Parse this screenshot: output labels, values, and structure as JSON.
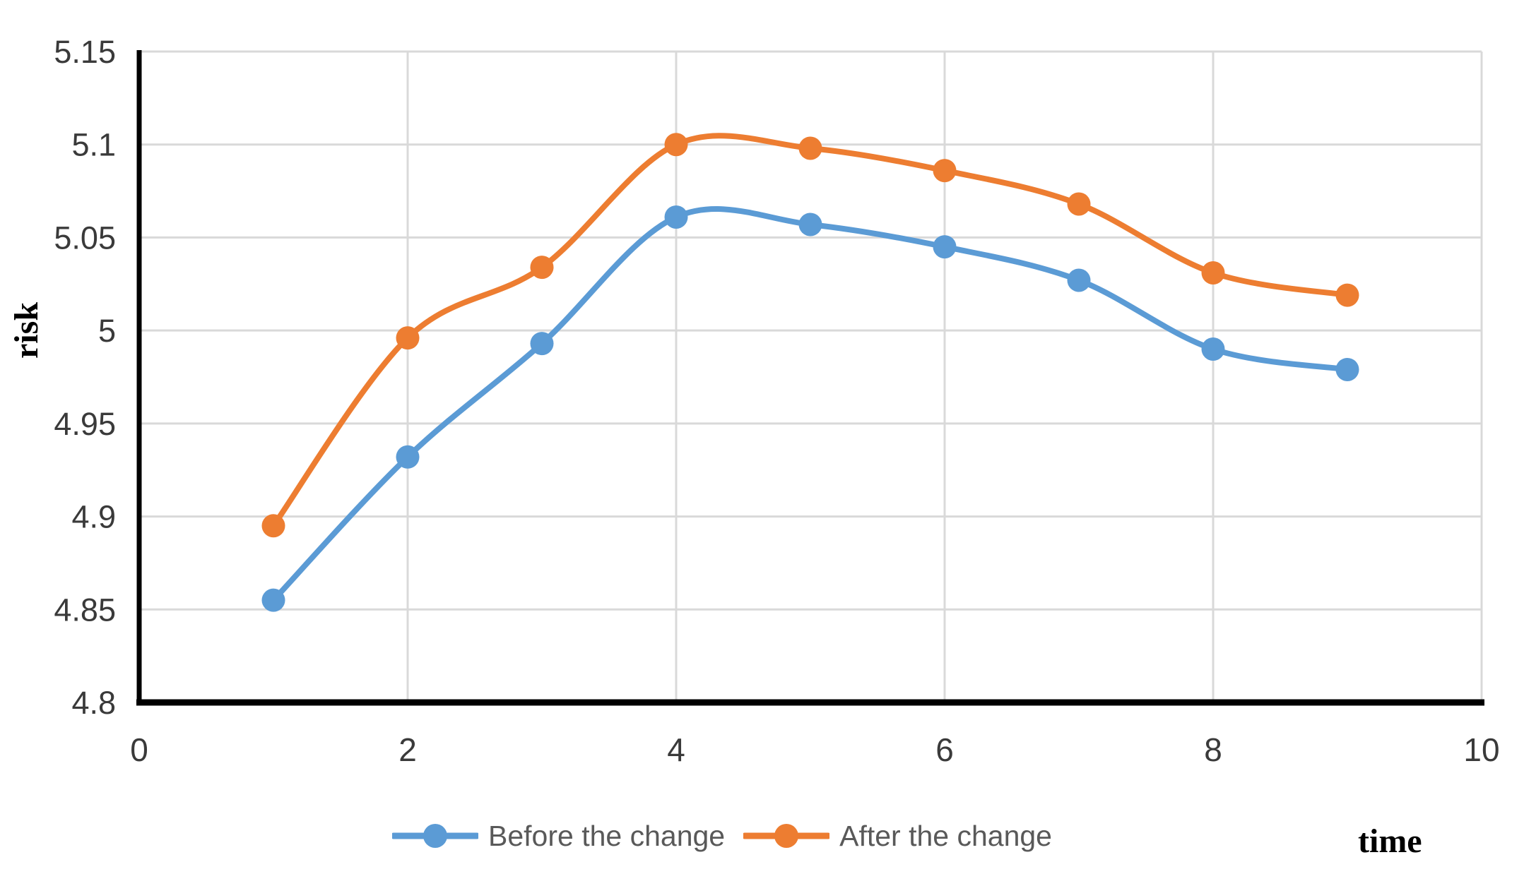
{
  "chart_data": {
    "type": "line",
    "title": "",
    "xlabel": "time",
    "ylabel": "risk",
    "x": [
      1,
      2,
      3,
      4,
      5,
      6,
      7,
      8,
      9
    ],
    "series": [
      {
        "name": "Before the change",
        "color": "#5B9BD5",
        "values": [
          4.855,
          4.932,
          4.993,
          5.061,
          5.057,
          5.045,
          5.027,
          4.99,
          4.979
        ]
      },
      {
        "name": "After the change",
        "color": "#ED7D31",
        "values": [
          4.895,
          4.996,
          5.034,
          5.1,
          5.098,
          5.086,
          5.068,
          5.031,
          5.019
        ]
      }
    ],
    "xlim": [
      0,
      10
    ],
    "ylim": [
      4.8,
      5.15
    ],
    "x_ticks": [
      0,
      2,
      4,
      6,
      8,
      10
    ],
    "x_tick_labels": [
      "0",
      "2",
      "4",
      "6",
      "8",
      "10"
    ],
    "y_ticks": [
      4.8,
      4.85,
      4.9,
      4.95,
      5.0,
      5.05,
      5.1,
      5.15
    ],
    "y_tick_labels": [
      "4.8",
      "4.85",
      "4.9",
      "4.95",
      "5",
      "5.05",
      "5.1",
      "5.15"
    ],
    "grid": true,
    "smooth_lines": true,
    "legend_position": "bottom",
    "colors": {
      "gridline": "#D9D9D9",
      "axis": "#000000",
      "tick_text": "#3A3A3A",
      "legend_text": "#595959",
      "background": "#FFFFFF"
    }
  }
}
